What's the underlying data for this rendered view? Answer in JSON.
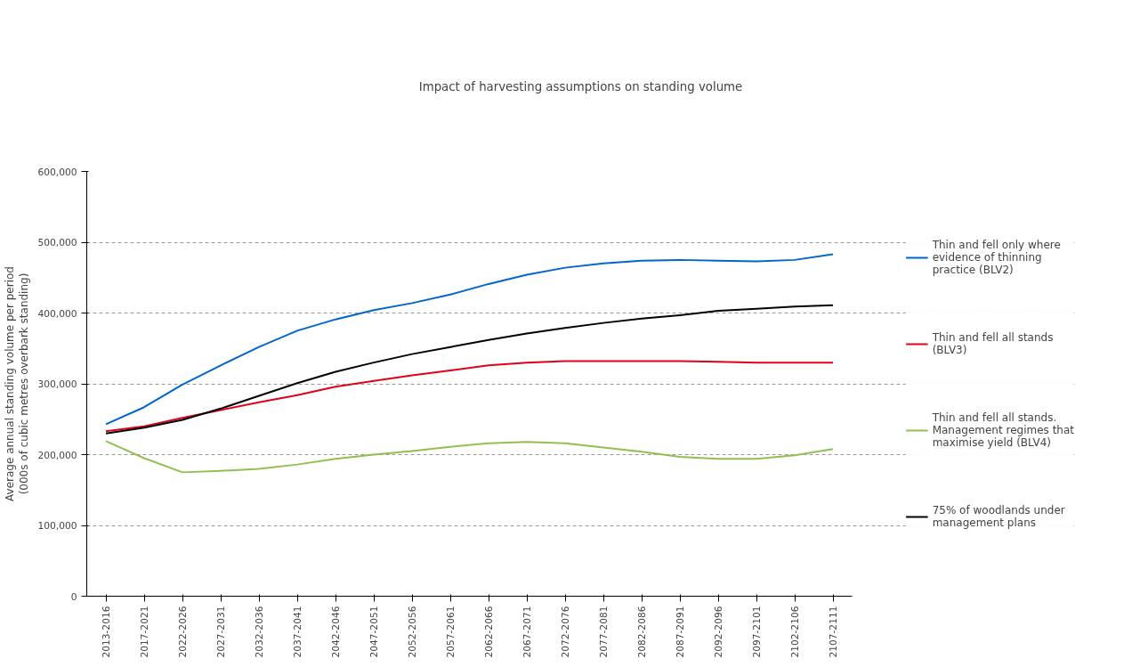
{
  "chart_data": {
    "type": "line",
    "title": "Impact of harvesting assumptions on standing volume",
    "ylabel": "Average annual standing volume per period\n(000s of cubic metres overbark standing)",
    "categories": [
      "2013-2016",
      "2017-2021",
      "2022-2026",
      "2027-2031",
      "2032-2036",
      "2037-2041",
      "2042-2046",
      "2047-2051",
      "2052-2056",
      "2057-2061",
      "2062-2066",
      "2067-2071",
      "2072-2076",
      "2077-2081",
      "2082-2086",
      "2087-2091",
      "2092-2096",
      "2097-2101",
      "2102-2106",
      "2107-2111"
    ],
    "series": [
      {
        "name": "Thin and fell only where evidence of thinning practice (BLV2)",
        "color": "#0066cc",
        "values": [
          243000,
          267000,
          299000,
          326000,
          352000,
          375000,
          391000,
          404000,
          414000,
          426000,
          441000,
          454000,
          464000,
          470000,
          474000,
          475000,
          474000,
          473000,
          475000,
          483000
        ]
      },
      {
        "name": "Thin and fell all stands (BLV3)",
        "color": "#e3001b",
        "values": [
          233000,
          240000,
          252000,
          263000,
          274000,
          284000,
          296000,
          304000,
          312000,
          319000,
          326000,
          330000,
          332000,
          332000,
          332000,
          332000,
          331000,
          330000,
          330000,
          330000
        ]
      },
      {
        "name": "Thin and fell all stands. Management regimes that maximise yield (BLV4)",
        "color": "#92c050",
        "values": [
          219000,
          195000,
          175000,
          177000,
          180000,
          186000,
          194000,
          200000,
          205000,
          211000,
          216000,
          218000,
          216000,
          210000,
          204000,
          197000,
          194000,
          194000,
          199000,
          208000
        ]
      },
      {
        "name": "75% of woodlands under management plans",
        "color": "#000000",
        "values": [
          230000,
          238000,
          249000,
          265000,
          283000,
          301000,
          317000,
          330000,
          342000,
          352000,
          362000,
          371000,
          379000,
          386000,
          392000,
          397000,
          403000,
          406000,
          409000,
          411000
        ]
      }
    ],
    "ylim": [
      0,
      600000
    ],
    "yticks": [
      0,
      {
        "value": 100000,
        "label": "100,000"
      },
      {
        "value": 200000,
        "label": "200,000"
      },
      {
        "value": 300000,
        "label": "300,000"
      },
      {
        "value": 400000,
        "label": "400,000"
      },
      {
        "value": 500000,
        "label": "500,000"
      },
      {
        "value": 600000,
        "label": "600,000"
      }
    ],
    "grid": "y",
    "legend": "right",
    "line_style": "solid",
    "marker": "none"
  }
}
